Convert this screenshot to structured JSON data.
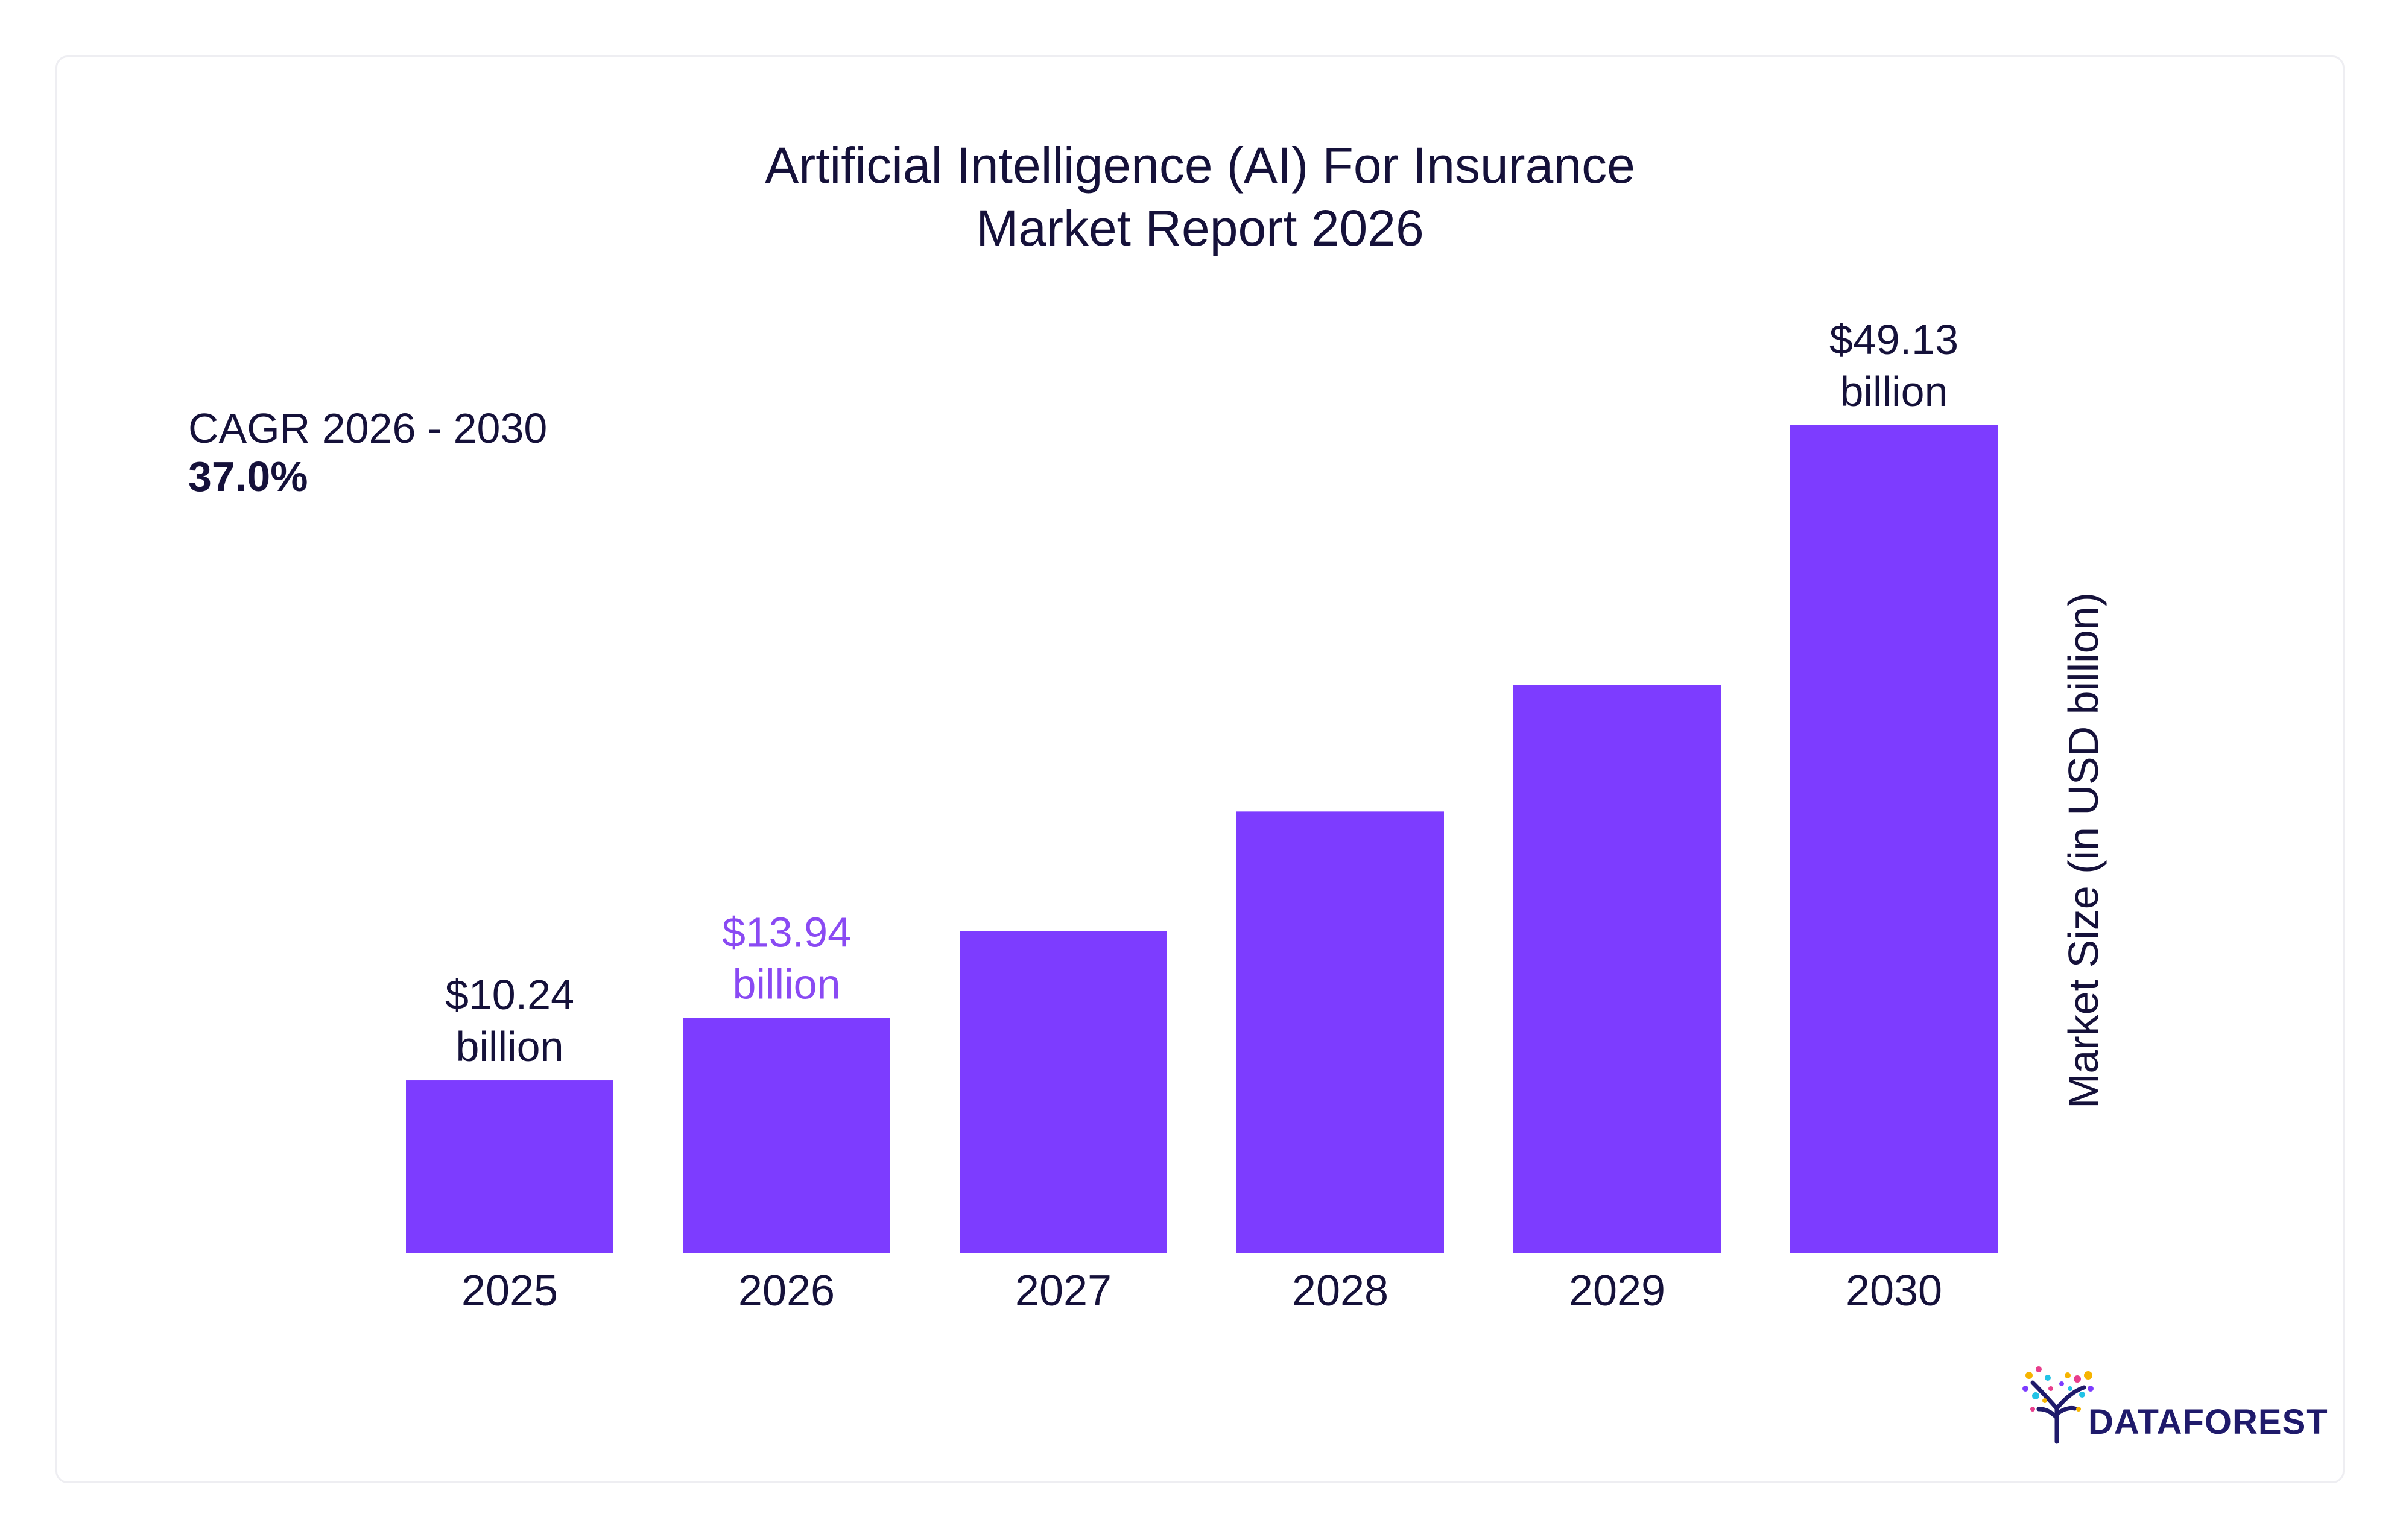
{
  "chart_data": {
    "type": "bar",
    "title": [
      "Artificial Intelligence (AI) For Insurance",
      "Market Report 2026"
    ],
    "ylabel": "Market Size (in USD billion)",
    "categories": [
      "2025",
      "2026",
      "2027",
      "2028",
      "2029",
      "2030"
    ],
    "values": [
      10.24,
      13.94,
      19.1,
      26.2,
      33.7,
      49.13
    ],
    "data_labels": [
      {
        "index": 0,
        "line1": "$10.24",
        "line2": "billion",
        "color": "#15113a"
      },
      {
        "index": 1,
        "line1": "$13.94",
        "line2": "billion",
        "color": "#8a4af3"
      },
      {
        "index": 5,
        "line1": "$49.13",
        "line2": "billion",
        "color": "#15113a"
      }
    ],
    "bar_color": "#7d3cff",
    "ylim": [
      0,
      49.13
    ],
    "grid": false,
    "axis_position": "right"
  },
  "cagr": {
    "label": "CAGR 2026 - 2030",
    "value": "37.0%"
  },
  "logo": {
    "text": "DATAFOREST"
  },
  "colors": {
    "text": "#15113a",
    "accent": "#7d3cff",
    "highlight_label": "#8a4af3"
  }
}
